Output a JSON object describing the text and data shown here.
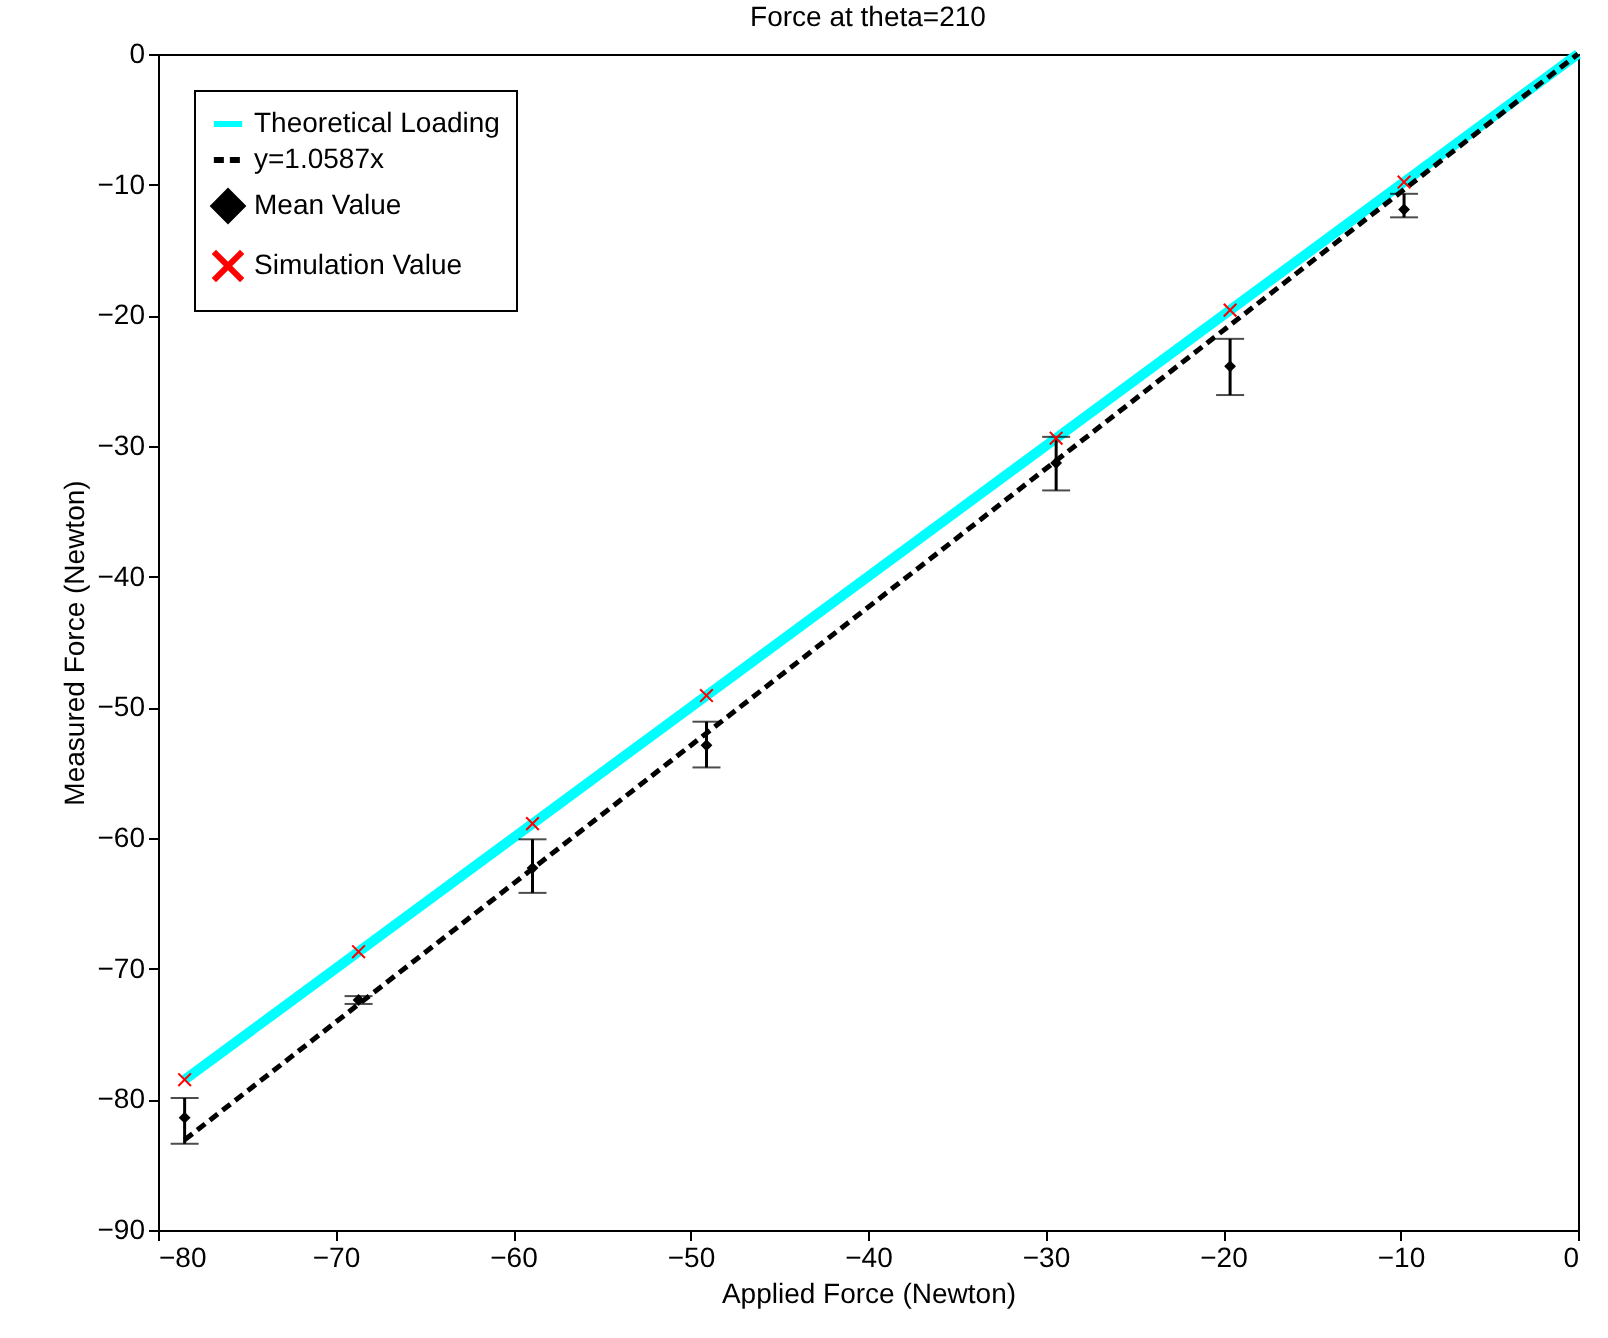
{
  "chart_data": {
    "type": "line",
    "title": "Force at theta=210",
    "xlabel": "Applied Force (Newton)",
    "ylabel": "Measured Force (Newton)",
    "xlim": [
      -80,
      0
    ],
    "xticks": [
      -80,
      -70,
      -60,
      -50,
      -40,
      -30,
      -20,
      -10,
      0
    ],
    "ylim": [
      -90,
      0
    ],
    "yticks": [
      -90,
      -80,
      -70,
      -60,
      -50,
      -40,
      -30,
      -20,
      -10,
      0
    ],
    "legend": "top left",
    "grid": false,
    "series": [
      {
        "name": "Theoretical Loading",
        "color": "#00ffff",
        "line_style": "solid",
        "marker": "none",
        "x": [
          -78.5,
          0
        ],
        "values": [
          -78.5,
          0
        ]
      },
      {
        "name": "y=1.0587x",
        "color": "#000000",
        "line_style": "dashed",
        "marker": "none",
        "x": [
          -78.5,
          0
        ],
        "values": [
          -83.1,
          0
        ]
      },
      {
        "name": "Mean Value",
        "type": "scatter",
        "color": "#000000",
        "marker": "diamond",
        "x": [
          -78.5,
          -68.7,
          -58.9,
          -49.1,
          -29.4,
          -19.6,
          -9.8
        ],
        "values": [
          -81.4,
          -72.4,
          -62.3,
          -52.9,
          -31.3,
          -23.9,
          -11.9
        ],
        "errors": [
          [
            -83.4,
            -79.9
          ],
          [
            -72.7,
            -72.1
          ],
          [
            -64.2,
            -60.1
          ],
          [
            -54.6,
            -51.1
          ],
          [
            -33.4,
            -29.3
          ],
          [
            -26.1,
            -21.8
          ],
          [
            -12.5,
            -10.7
          ]
        ]
      },
      {
        "name": "Simulation Value",
        "type": "scatter",
        "color": "#ff0000",
        "marker": "cross",
        "x": [
          -78.5,
          -68.7,
          -58.9,
          -49.1,
          -29.4,
          -19.6,
          -9.8
        ],
        "values": [
          -78.5,
          -68.7,
          -58.9,
          -49.1,
          -29.4,
          -19.6,
          -9.8
        ]
      }
    ]
  }
}
